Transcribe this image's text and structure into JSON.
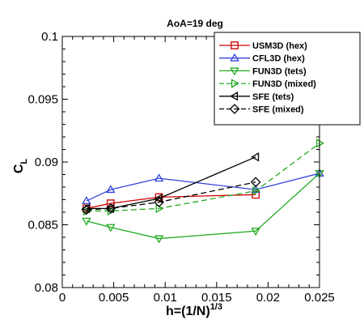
{
  "chart_data": {
    "type": "line",
    "title": "AoA=19 deg",
    "xlabel": {
      "base": "h=(1/N)",
      "sup": "1/3"
    },
    "ylabel": {
      "base": "C",
      "sub": "L"
    },
    "xlim": [
      0,
      0.025
    ],
    "ylim": [
      0.08,
      0.1
    ],
    "xticks": [
      0,
      0.005,
      0.01,
      0.015,
      0.02,
      0.025
    ],
    "xtick_labels": [
      "0",
      "0.005",
      "0.01",
      "0.015",
      "0.02",
      "0.025"
    ],
    "yticks": [
      0.08,
      0.085,
      0.09,
      0.095,
      0.1
    ],
    "ytick_labels": [
      "0.08",
      "0.085",
      "0.09",
      "0.095",
      "0.1"
    ],
    "grid": false,
    "legend_position": "top-right",
    "series": [
      {
        "name": "USM3D (hex)",
        "color": "#cc0000",
        "dash": "solid",
        "marker": "square",
        "x": [
          0.00235,
          0.0047,
          0.0094,
          0.0188
        ],
        "y": [
          0.0863,
          0.0867,
          0.0872,
          0.0874
        ]
      },
      {
        "name": "CFL3D (hex)",
        "color": "#3344dd",
        "dash": "solid",
        "marker": "triangle-up",
        "x": [
          0.00235,
          0.0047,
          0.0094,
          0.0188,
          0.025
        ],
        "y": [
          0.0869,
          0.0878,
          0.0887,
          0.0878,
          0.0891
        ]
      },
      {
        "name": "FUN3D (tets)",
        "color": "#22aa22",
        "dash": "solid",
        "marker": "triangle-down",
        "x": [
          0.00235,
          0.0047,
          0.0094,
          0.0188,
          0.025
        ],
        "y": [
          0.0853,
          0.0848,
          0.0839,
          0.0845,
          0.0891
        ]
      },
      {
        "name": "FUN3D (mixed)",
        "color": "#22aa22",
        "dash": "dashed",
        "marker": "triangle-right",
        "x": [
          0.00235,
          0.0047,
          0.0094,
          0.0188,
          0.025
        ],
        "y": [
          0.0861,
          0.0861,
          0.0863,
          0.0877,
          0.0915
        ]
      },
      {
        "name": "SFE (tets)",
        "color": "#000000",
        "dash": "solid",
        "marker": "triangle-left",
        "x": [
          0.00235,
          0.0047,
          0.0094,
          0.0188
        ],
        "y": [
          0.0863,
          0.0863,
          0.0871,
          0.0904
        ]
      },
      {
        "name": "SFE (mixed)",
        "color": "#000000",
        "dash": "dashed",
        "marker": "diamond",
        "x": [
          0.00235,
          0.0047,
          0.0094,
          0.0188
        ],
        "y": [
          0.0862,
          0.0863,
          0.0868,
          0.0884
        ]
      }
    ]
  }
}
